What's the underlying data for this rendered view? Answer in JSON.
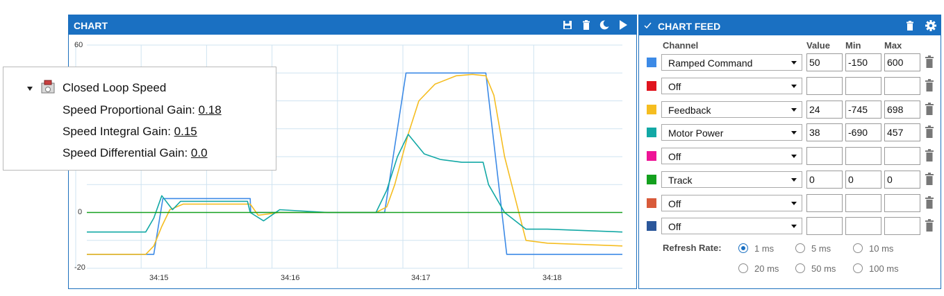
{
  "chart_panel": {
    "title": "CHART",
    "icons": [
      "save-icon",
      "trash-icon",
      "moon-icon",
      "play-icon"
    ]
  },
  "chart_data": {
    "type": "line",
    "ylim": [
      -20,
      60
    ],
    "xlim": [
      0,
      1.0
    ],
    "y_ticks": [
      "60",
      "0",
      "-20"
    ],
    "x_ticks": [
      "34:15",
      "34:16",
      "34:17",
      "34:18"
    ],
    "grid": true,
    "series": [
      {
        "name": "Ramped Command",
        "color": "#3c8ae6",
        "x": [
          0,
          0.125,
          0.142,
          0.305,
          0.306,
          0.556,
          0.596,
          0.665,
          0.745,
          0.784,
          1.0
        ],
        "y": [
          -15,
          -15,
          5,
          5,
          0,
          0,
          50,
          50,
          50,
          -15,
          -15
        ]
      },
      {
        "name": "Feedback",
        "color": "#f5bd20",
        "x": [
          0,
          0.11,
          0.125,
          0.14,
          0.155,
          0.18,
          0.22,
          0.26,
          0.305,
          0.32,
          0.36,
          0.45,
          0.54,
          0.56,
          0.575,
          0.6,
          0.62,
          0.65,
          0.69,
          0.72,
          0.745,
          0.76,
          0.78,
          0.82,
          0.86,
          1.0
        ],
        "y": [
          -15,
          -15,
          -12,
          -5,
          1,
          3,
          3,
          3,
          3,
          -1,
          0,
          0,
          0,
          2,
          10,
          28,
          40,
          46,
          49,
          49.5,
          49,
          42,
          20,
          -10,
          -11,
          -12
        ]
      },
      {
        "name": "Motor Power",
        "color": "#12a8a5",
        "x": [
          0,
          0.11,
          0.125,
          0.14,
          0.16,
          0.175,
          0.2,
          0.3,
          0.305,
          0.33,
          0.36,
          0.45,
          0.54,
          0.56,
          0.58,
          0.6,
          0.6,
          0.63,
          0.66,
          0.7,
          0.74,
          0.75,
          0.78,
          0.82,
          0.86,
          1.0
        ],
        "y": [
          -7,
          -7,
          -2,
          6,
          1,
          4,
          4,
          4,
          0,
          -3,
          1,
          0,
          0,
          8,
          20,
          28,
          28,
          21,
          19,
          18,
          18,
          10,
          0,
          -6,
          -6,
          -7
        ]
      },
      {
        "name": "Track",
        "color": "#14a01e",
        "x": [
          0,
          1.0
        ],
        "y": [
          0,
          0
        ]
      }
    ]
  },
  "overlay": {
    "heading": "Closed Loop Speed",
    "rows": [
      {
        "label": "Speed Proportional Gain: ",
        "value": "0.18"
      },
      {
        "label": "Speed Integral Gain: ",
        "value": "0.15"
      },
      {
        "label": "Speed Differential Gain: ",
        "value": "0.0"
      }
    ]
  },
  "feed_panel": {
    "title": "CHART FEED",
    "headers": {
      "channel": "Channel",
      "value": "Value",
      "min": "Min",
      "max": "Max"
    },
    "channels": [
      {
        "color": "#3c8ae6",
        "name": "Ramped Command",
        "value": "50",
        "min": "-150",
        "max": "600"
      },
      {
        "color": "#e0141e",
        "name": "Off",
        "value": "",
        "min": "",
        "max": ""
      },
      {
        "color": "#f5bd20",
        "name": "Feedback",
        "value": "24",
        "min": "-745",
        "max": "698"
      },
      {
        "color": "#12a8a5",
        "name": "Motor Power",
        "value": "38",
        "min": "-690",
        "max": "457"
      },
      {
        "color": "#ee1496",
        "name": "Off",
        "value": "",
        "min": "",
        "max": ""
      },
      {
        "color": "#14a01e",
        "name": "Track",
        "value": "0",
        "min": "0",
        "max": "0"
      },
      {
        "color": "#d85a3a",
        "name": "Off",
        "value": "",
        "min": "",
        "max": ""
      },
      {
        "color": "#2b579a",
        "name": "Off",
        "value": "",
        "min": "",
        "max": ""
      }
    ],
    "refresh_label": "Refresh Rate:",
    "refresh_options": [
      "1 ms",
      "5 ms",
      "10 ms",
      "20 ms",
      "50 ms",
      "100 ms"
    ],
    "refresh_selected": "1 ms"
  }
}
